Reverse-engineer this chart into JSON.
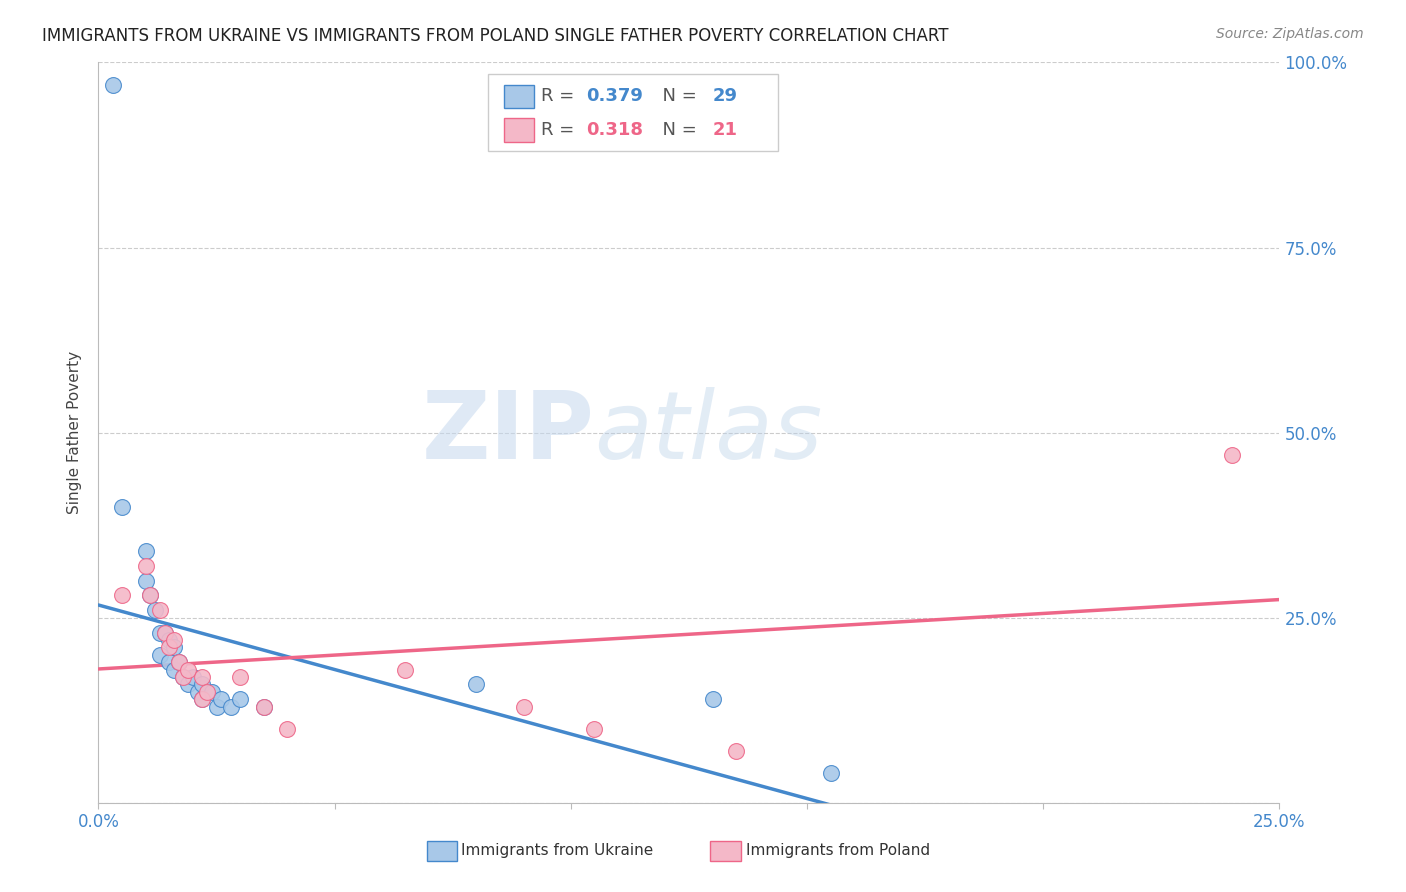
{
  "title": "IMMIGRANTS FROM UKRAINE VS IMMIGRANTS FROM POLAND SINGLE FATHER POVERTY CORRELATION CHART",
  "source": "Source: ZipAtlas.com",
  "ylabel": "Single Father Poverty",
  "watermark_zip": "ZIP",
  "watermark_atlas": "atlas",
  "ukraine_color": "#a8c8e8",
  "poland_color": "#f4b8c8",
  "ukraine_line_color": "#4488cc",
  "poland_line_color": "#ee6688",
  "dashed_line_color": "#aaccee",
  "ukraine_r": "0.379",
  "ukraine_n": "29",
  "poland_r": "0.318",
  "poland_n": "21",
  "ukraine_scatter": [
    [
      0.003,
      0.97
    ],
    [
      0.005,
      0.4
    ],
    [
      0.01,
      0.34
    ],
    [
      0.01,
      0.3
    ],
    [
      0.011,
      0.28
    ],
    [
      0.012,
      0.26
    ],
    [
      0.013,
      0.23
    ],
    [
      0.013,
      0.2
    ],
    [
      0.014,
      0.23
    ],
    [
      0.015,
      0.22
    ],
    [
      0.015,
      0.19
    ],
    [
      0.016,
      0.21
    ],
    [
      0.016,
      0.18
    ],
    [
      0.017,
      0.19
    ],
    [
      0.018,
      0.17
    ],
    [
      0.019,
      0.16
    ],
    [
      0.02,
      0.17
    ],
    [
      0.021,
      0.15
    ],
    [
      0.022,
      0.16
    ],
    [
      0.022,
      0.14
    ],
    [
      0.024,
      0.15
    ],
    [
      0.025,
      0.13
    ],
    [
      0.026,
      0.14
    ],
    [
      0.028,
      0.13
    ],
    [
      0.03,
      0.14
    ],
    [
      0.035,
      0.13
    ],
    [
      0.08,
      0.16
    ],
    [
      0.13,
      0.14
    ],
    [
      0.155,
      0.04
    ]
  ],
  "poland_scatter": [
    [
      0.005,
      0.28
    ],
    [
      0.01,
      0.32
    ],
    [
      0.011,
      0.28
    ],
    [
      0.013,
      0.26
    ],
    [
      0.014,
      0.23
    ],
    [
      0.015,
      0.21
    ],
    [
      0.016,
      0.22
    ],
    [
      0.017,
      0.19
    ],
    [
      0.018,
      0.17
    ],
    [
      0.019,
      0.18
    ],
    [
      0.022,
      0.17
    ],
    [
      0.022,
      0.14
    ],
    [
      0.023,
      0.15
    ],
    [
      0.03,
      0.17
    ],
    [
      0.035,
      0.13
    ],
    [
      0.04,
      0.1
    ],
    [
      0.065,
      0.18
    ],
    [
      0.09,
      0.13
    ],
    [
      0.105,
      0.1
    ],
    [
      0.135,
      0.07
    ],
    [
      0.24,
      0.47
    ]
  ],
  "xlim": [
    0.0,
    0.25
  ],
  "ylim": [
    0.0,
    1.0
  ],
  "xticks": [
    0.0,
    0.05,
    0.1,
    0.15,
    0.2,
    0.25
  ],
  "yticks": [
    0.0,
    0.25,
    0.5,
    0.75,
    1.0
  ]
}
